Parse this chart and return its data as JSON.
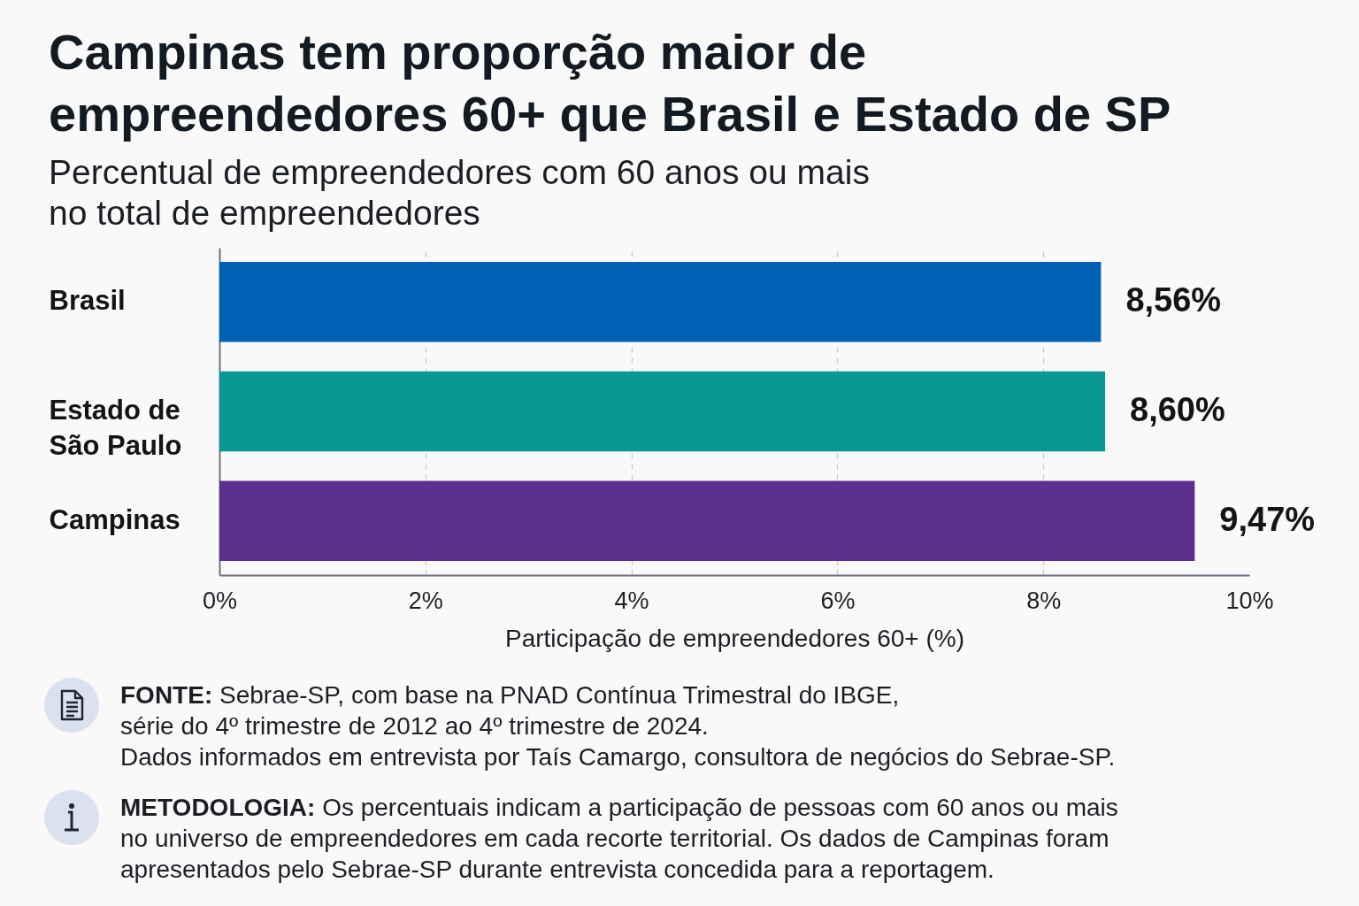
{
  "chart_data": {
    "type": "bar",
    "orientation": "horizontal",
    "title": "Campinas tem proporção maior de empreendedores 60+ que Brasil e Estado de SP",
    "subtitle": "Percentual de empreendedores com 60 anos ou mais\nno total de empreendedores",
    "xlabel": "Participação de empreendedores 60+ (%)",
    "categories": [
      "Brasil",
      "Estado de São Paulo",
      "Campinas"
    ],
    "values": [
      8.56,
      8.6,
      9.47
    ],
    "colors": [
      "#0062b4",
      "#079893",
      "#5a2f8e"
    ],
    "value_labels": [
      "8,56%",
      "8,60%",
      "9,47%"
    ],
    "xlim": [
      0,
      10
    ],
    "xticks": [
      {
        "value": 0,
        "label": "0%"
      },
      {
        "value": 2,
        "label": "2%"
      },
      {
        "value": 4,
        "label": "4%"
      },
      {
        "value": 6,
        "label": "6%"
      },
      {
        "value": 8,
        "label": "8%"
      },
      {
        "value": 10,
        "label": "10%"
      }
    ],
    "grid": "x",
    "annotations": [
      "FONTE: Sebrae-SP, com base na PNAD Contínua Trimestral do IBGE,\nsérie do 4º trimestre de 2012 ao 4º trimestre de 2024.\nDados informados em entrevista por Taís Camargo, consultora de negócios do Sebrae-SP.",
      "METODOLOGIA: Os percentuais indicam a participação de pessoas com 60 anos ou mais\nno universo de empreendedores em cada recorte territorial. Os dados de Campinas foram\napresentados pelo Sebrae-SP durante entrevista concedida para a reportagem."
    ]
  }
}
